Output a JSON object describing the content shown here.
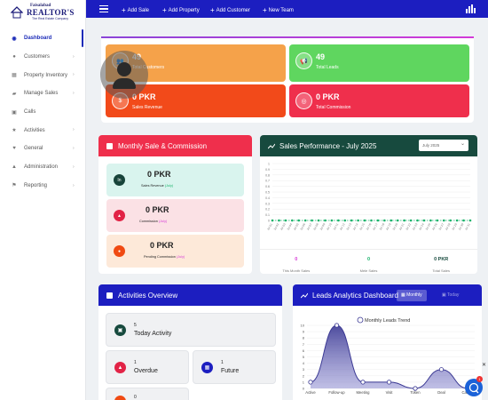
{
  "brand": {
    "top": "Faisalabad",
    "name": "REALTOR'S",
    "tagline": "The Real Estate Company"
  },
  "topbar": {
    "links": [
      {
        "label": "Add Sale"
      },
      {
        "label": "Add Property"
      },
      {
        "label": "Add Customer"
      },
      {
        "label": "New Team"
      }
    ]
  },
  "sidebar": {
    "items": [
      {
        "label": "Dashboard",
        "icon": "dashboard-icon",
        "active": true,
        "chevron": false
      },
      {
        "label": "Customers",
        "icon": "users-icon",
        "chevron": true
      },
      {
        "label": "Property Inventory",
        "icon": "building-icon",
        "chevron": true
      },
      {
        "label": "Manage Sales",
        "icon": "cart-icon",
        "chevron": true
      },
      {
        "label": "Calls",
        "icon": "phone-icon",
        "chevron": false
      },
      {
        "label": "Activities",
        "icon": "star-icon",
        "chevron": true
      },
      {
        "label": "General",
        "icon": "heart-icon",
        "chevron": true
      },
      {
        "label": "Administration",
        "icon": "bank-icon",
        "chevron": true
      },
      {
        "label": "Reporting",
        "icon": "flag-icon",
        "chevron": true
      }
    ]
  },
  "stats": {
    "customers": {
      "value": "49",
      "label": "Total Customers",
      "color": "#f5a24a"
    },
    "leads": {
      "value": "49",
      "label": "Total Leads",
      "color": "#5fd65f"
    },
    "sales": {
      "value": "0 PKR",
      "label": "Sales Revenue",
      "color": "#f24a1a"
    },
    "commission": {
      "value": "0 PKR",
      "label": "Total Commission",
      "color": "#ef2f4c"
    }
  },
  "monthly": {
    "title": "Monthly Sale & Commission",
    "items": [
      {
        "amount": "0 PKR",
        "label": "Sales Revenue",
        "period": "(July)",
        "bg": "#d9f4ee",
        "dot": "#17443a",
        "icon": "In"
      },
      {
        "amount": "0 PKR",
        "label": "Commission",
        "period": "(July)",
        "bg": "#fbe1e5",
        "dot": "#e22346",
        "icon": "▲"
      },
      {
        "amount": "0 PKR",
        "label": "Pending Commission",
        "period": "(July)",
        "bg": "#fde9d9",
        "dot": "#f04a12",
        "icon": "●"
      }
    ]
  },
  "performance": {
    "title": "Sales Performance - July 2025",
    "select": "July 2025",
    "footer": [
      {
        "value": "0",
        "label": "This Month Sales",
        "color": "#d63bd6"
      },
      {
        "value": "0",
        "label": "Mele Sales",
        "color": "#19b36b"
      },
      {
        "value": "0 PKR",
        "label": "Total Sales",
        "color": "#174a3e"
      }
    ]
  },
  "activities": {
    "title": "Activities Overview",
    "items": [
      {
        "count": "5",
        "name": "Today Activity"
      },
      {
        "count": "1",
        "name": "Overdue"
      },
      {
        "count": "1",
        "name": "Future"
      },
      {
        "count": "0",
        "name": ""
      }
    ]
  },
  "leads": {
    "title": "Leads Analytics Dashboard",
    "tab_monthly": "Monthly",
    "tab_other": "Today"
  },
  "chart_data": [
    {
      "type": "line",
      "title": "",
      "xlabel": "",
      "ylabel": "",
      "ylim": [
        0,
        1.0
      ],
      "yticks": [
        "0",
        "0.1",
        "0.2",
        "0.3",
        "0.4",
        "0.5",
        "0.6",
        "0.7",
        "0.8",
        "0.9",
        "1"
      ],
      "categories": [
        "Jul 01",
        "Jul 02",
        "Jul 03",
        "Jul 04",
        "Jul 05",
        "Jul 06",
        "Jul 07",
        "Jul 08",
        "Jul 09",
        "Jul 10",
        "Jul 11",
        "Jul 12",
        "Jul 13",
        "Jul 14",
        "Jul 15",
        "Jul 16",
        "Jul 17",
        "Jul 18",
        "Jul 19",
        "Jul 20",
        "Jul 21",
        "Jul 22",
        "Jul 23",
        "Jul 24",
        "Jul 25",
        "Jul 26",
        "Jul 27",
        "Jul 28",
        "Jul 29",
        "Jul 30",
        "Jul 31"
      ],
      "series": [
        {
          "values": [
            0,
            0,
            0,
            0,
            0,
            0,
            0,
            0,
            0,
            0,
            0,
            0,
            0,
            0,
            0,
            0,
            0,
            0,
            0,
            0,
            0,
            0,
            0,
            0,
            0,
            0,
            0,
            0,
            0,
            0,
            0
          ],
          "color": "#19b36b"
        }
      ],
      "grid": true
    },
    {
      "type": "area",
      "legend": "Monthly Leads Trend",
      "legend_position": "top",
      "categories": [
        "Active",
        "Follow-up",
        "Meeting",
        "Visit",
        "Token",
        "Deal",
        "Cancel"
      ],
      "yticks": [
        "0",
        "1",
        "2",
        "3",
        "4",
        "5",
        "6",
        "7",
        "8",
        "9",
        "10"
      ],
      "ylim": [
        0,
        10
      ],
      "series": [
        {
          "name": "Monthly Leads Trend",
          "values": [
            1,
            10,
            1,
            1,
            0,
            3,
            0
          ],
          "color": "#3a3893"
        }
      ],
      "grid": true
    }
  ]
}
